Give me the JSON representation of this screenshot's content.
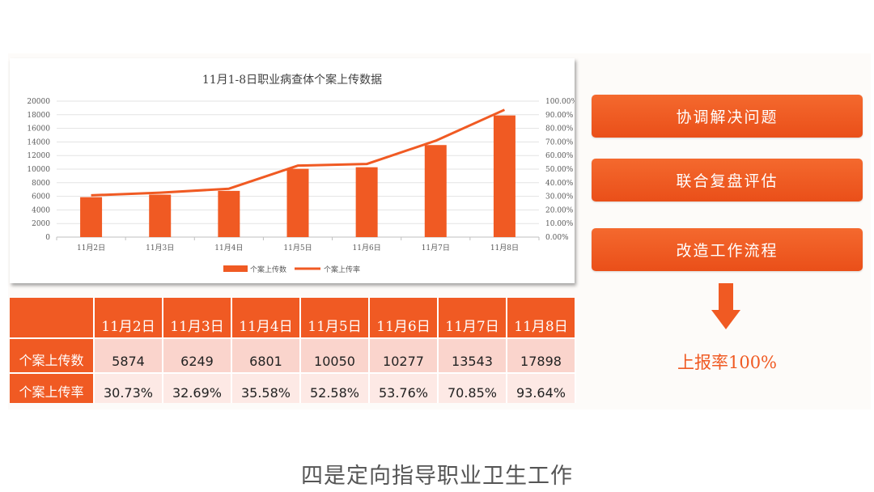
{
  "chart_data": {
    "type": "bar",
    "title": "11月1-8日职业病查体个案上传数据",
    "categories": [
      "11月2日",
      "11月3日",
      "11月4日",
      "11月5日",
      "11月6日",
      "11月7日",
      "11月8日"
    ],
    "series": [
      {
        "name": "个案上传数",
        "type": "bar",
        "axis": "left",
        "color": "#f05a23",
        "values": [
          5874,
          6249,
          6801,
          10050,
          10277,
          13543,
          17898
        ]
      },
      {
        "name": "个案上传率",
        "type": "line",
        "axis": "right",
        "color": "#f05a23",
        "values": [
          30.73,
          32.69,
          35.58,
          52.58,
          53.76,
          70.85,
          93.64
        ]
      }
    ],
    "ylim": [
      0,
      20000
    ],
    "y_ticks": [
      "0",
      "2000",
      "4000",
      "6000",
      "8000",
      "10000",
      "12000",
      "14000",
      "16000",
      "18000",
      "20000"
    ],
    "y2lim": [
      0,
      100
    ],
    "y2_ticks": [
      "0.00%",
      "10.00%",
      "20.00%",
      "30.00%",
      "40.00%",
      "50.00%",
      "60.00%",
      "70.00%",
      "80.00%",
      "90.00%",
      "100.00%"
    ],
    "grid": true,
    "legend_position": "bottom"
  },
  "table": {
    "headers": [
      "11月2日",
      "11月3日",
      "11月4日",
      "11月5日",
      "11月6日",
      "11月7日",
      "11月8日"
    ],
    "rows": [
      {
        "label": "个案上传数",
        "cells": [
          "5874",
          "6249",
          "6801",
          "10050",
          "10277",
          "13543",
          "17898"
        ]
      },
      {
        "label": "个案上传率",
        "cells": [
          "30.73%",
          "32.69%",
          "35.58%",
          "52.58%",
          "53.76%",
          "70.85%",
          "93.64%"
        ]
      }
    ]
  },
  "actions": [
    {
      "label": "协调解决问题"
    },
    {
      "label": "联合复盘评估"
    },
    {
      "label": "改造工作流程"
    }
  ],
  "result_label": "上报率100%",
  "caption": "四是定向指导职业卫生工作",
  "colors": {
    "accent": "#f05a23"
  },
  "icons": {
    "arrow": "arrow-down-icon"
  }
}
